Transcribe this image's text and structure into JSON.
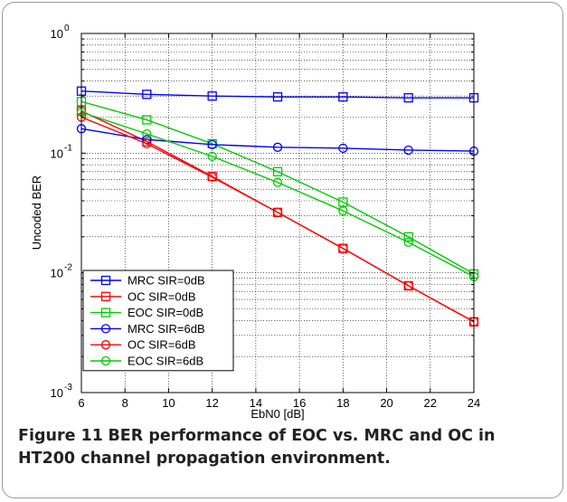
{
  "caption": {
    "label": "Figure 11",
    "text": "BER performance of EOC vs. MRC and OC in HT200 channel propagation environment."
  },
  "chart_data": {
    "type": "line",
    "xlabel": "EbN0 [dB]",
    "ylabel": "Uncoded BER",
    "xlim": [
      6,
      24
    ],
    "ylim": [
      0.001,
      1
    ],
    "yscale": "log",
    "grid": true,
    "legend_position": "bottom-left",
    "x_ticks": [
      "6",
      "8",
      "10",
      "12",
      "14",
      "16",
      "18",
      "20",
      "22",
      "24"
    ],
    "y_ticks": [
      {
        "value": 1,
        "base": "10",
        "exp": "0"
      },
      {
        "value": 0.1,
        "base": "10",
        "exp": "-1"
      },
      {
        "value": 0.01,
        "base": "10",
        "exp": "-2"
      },
      {
        "value": 0.001,
        "base": "10",
        "exp": "-3"
      }
    ],
    "x": [
      6,
      9,
      12,
      15,
      18,
      21,
      24
    ],
    "series": [
      {
        "name": "MRC SIR=0dB",
        "color": "#0000ff",
        "marker": "square",
        "values": [
          0.33,
          0.31,
          0.3,
          0.295,
          0.295,
          0.29,
          0.29
        ]
      },
      {
        "name": "OC SIR=0dB",
        "color": "#ff0000",
        "marker": "square",
        "values": [
          0.225,
          0.125,
          0.064,
          0.032,
          0.016,
          0.0078,
          0.0039
        ]
      },
      {
        "name": "EOC SIR=0dB",
        "color": "#00cc00",
        "marker": "square",
        "values": [
          0.27,
          0.19,
          0.12,
          0.07,
          0.039,
          0.02,
          0.0098
        ]
      },
      {
        "name": "MRC SIR=6dB",
        "color": "#0000ff",
        "marker": "circle",
        "values": [
          0.16,
          0.13,
          0.118,
          0.112,
          0.11,
          0.106,
          0.104
        ]
      },
      {
        "name": "OC SIR=6dB",
        "color": "#ff0000",
        "marker": "circle",
        "values": [
          0.2,
          0.12,
          0.063,
          0.032,
          0.016,
          0.0078,
          0.0039
        ]
      },
      {
        "name": "EOC SIR=6dB",
        "color": "#00cc00",
        "marker": "circle",
        "values": [
          0.22,
          0.145,
          0.094,
          0.057,
          0.033,
          0.018,
          0.0093
        ]
      }
    ]
  }
}
